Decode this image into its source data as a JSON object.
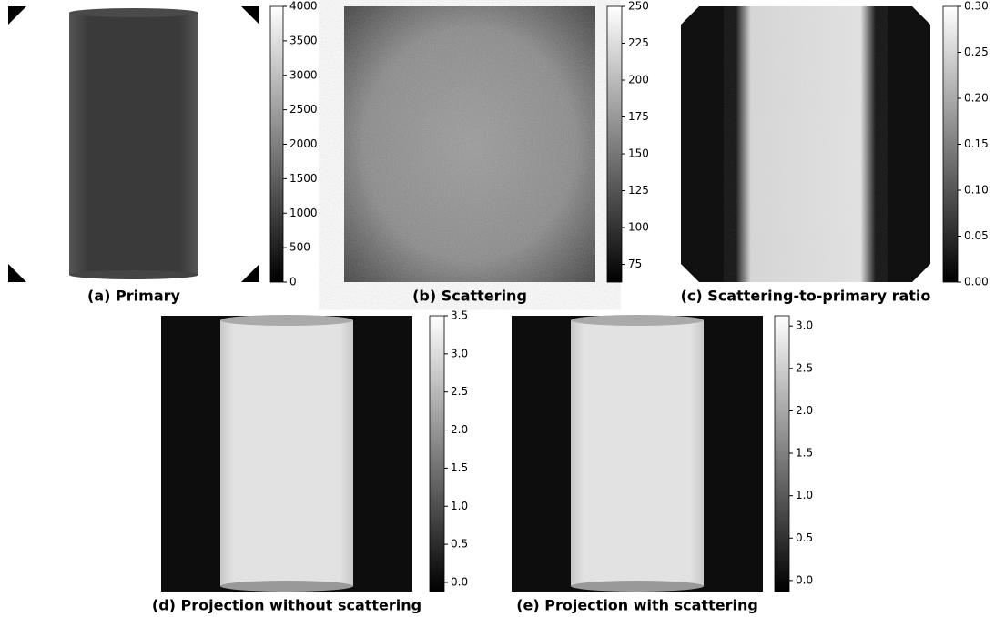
{
  "chart_data": [
    {
      "type": "image",
      "caption": "(a) Primary",
      "clim": [
        0,
        4000
      ],
      "yticks": [
        0,
        500,
        1000,
        1500,
        2000,
        2500,
        3000,
        3500,
        4000
      ]
    },
    {
      "type": "image",
      "caption": "(b) Scattering",
      "clim": [
        63,
        250
      ],
      "yticks": [
        75,
        100,
        125,
        150,
        175,
        200,
        225,
        250
      ]
    },
    {
      "type": "image",
      "caption": "(c) Scattering-to-primary ratio",
      "clim": [
        0,
        0.3
      ],
      "yticks": [
        {
          "value": 0,
          "label": "0.00"
        },
        {
          "value": 0.05,
          "label": "0.05"
        },
        {
          "value": 0.1,
          "label": "0.10"
        },
        {
          "value": 0.15,
          "label": "0.15"
        },
        {
          "value": 0.2,
          "label": "0.20"
        },
        {
          "value": 0.25,
          "label": "0.25"
        },
        {
          "value": 0.3,
          "label": "0.30"
        }
      ]
    },
    {
      "type": "image",
      "caption": "(d) Projection without scattering",
      "clim": [
        -0.12,
        3.5
      ],
      "yticks": [
        {
          "value": 0,
          "label": "0.0"
        },
        {
          "value": 0.5,
          "label": "0.5"
        },
        {
          "value": 1,
          "label": "1.0"
        },
        {
          "value": 1.5,
          "label": "1.5"
        },
        {
          "value": 2,
          "label": "2.0"
        },
        {
          "value": 2.5,
          "label": "2.5"
        },
        {
          "value": 3,
          "label": "3.0"
        },
        {
          "value": 3.5,
          "label": "3.5"
        }
      ]
    },
    {
      "type": "image",
      "caption": "(e) Projection with scattering",
      "clim": [
        -0.13,
        3.12
      ],
      "yticks": [
        {
          "value": 0,
          "label": "0.0"
        },
        {
          "value": 0.5,
          "label": "0.5"
        },
        {
          "value": 1,
          "label": "1.0"
        },
        {
          "value": 1.5,
          "label": "1.5"
        },
        {
          "value": 2,
          "label": "2.0"
        },
        {
          "value": 2.5,
          "label": "2.5"
        },
        {
          "value": 3,
          "label": "3.0"
        }
      ]
    }
  ]
}
